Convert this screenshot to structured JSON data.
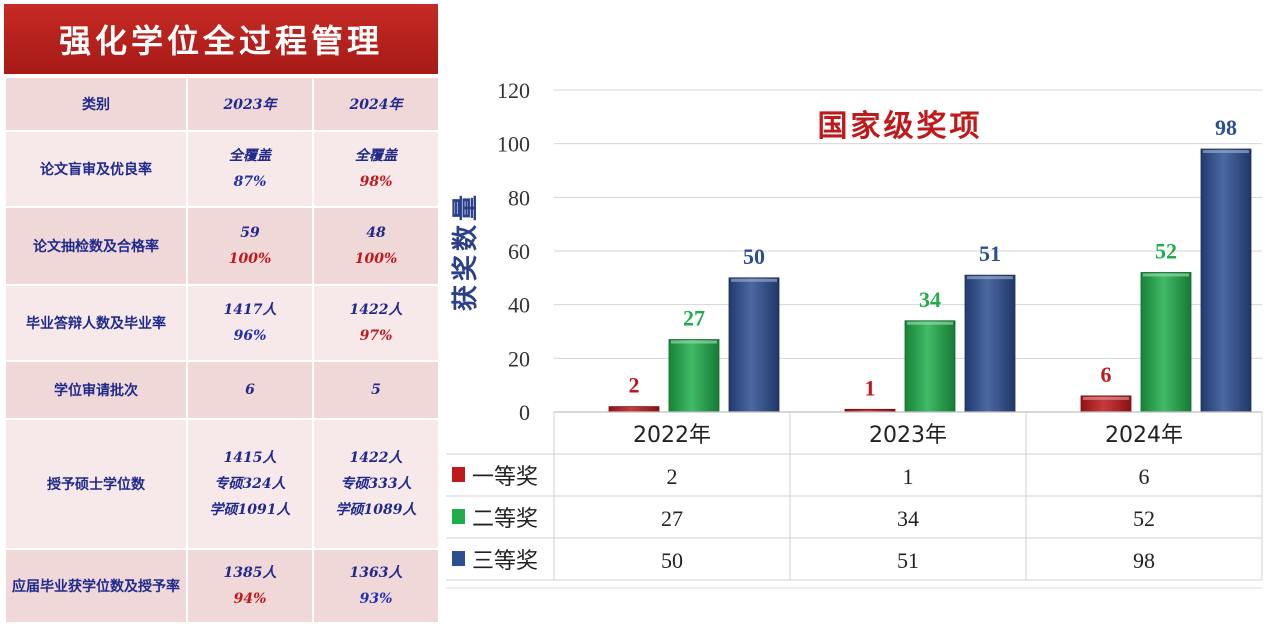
{
  "left_table": {
    "title": "强化学位全过程管理",
    "headers": [
      "类别",
      "2023年",
      "2024年"
    ],
    "rows": [
      {
        "label": "论文盲审及优良率",
        "c2023": [
          "全覆盖",
          "87%"
        ],
        "c2024": [
          "全覆盖",
          "98%"
        ],
        "color2023": [
          "",
          "blue"
        ],
        "color2024": [
          "",
          "red"
        ]
      },
      {
        "label": "论文抽检数及合格率",
        "c2023": [
          "59",
          "100%"
        ],
        "c2024": [
          "48",
          "100%"
        ],
        "color2023": [
          "",
          "red"
        ],
        "color2024": [
          "",
          "red"
        ]
      },
      {
        "label": "毕业答辩人数及毕业率",
        "c2023": [
          "1417人",
          "96%"
        ],
        "c2024": [
          "1422人",
          "97%"
        ],
        "color2023": [
          "",
          "blue"
        ],
        "color2024": [
          "",
          "red"
        ]
      },
      {
        "label": "学位审请批次",
        "c2023": [
          "6"
        ],
        "c2024": [
          "5"
        ],
        "color2023": [
          ""
        ],
        "color2024": [
          ""
        ]
      },
      {
        "label": "授予硕士学位数",
        "c2023": [
          "1415人",
          "专硕324人",
          "学硕1091人"
        ],
        "c2024": [
          "1422人",
          "专硕333人",
          "学硕1089人"
        ],
        "color2023": [
          "",
          "",
          ""
        ],
        "color2024": [
          "",
          "",
          ""
        ]
      },
      {
        "label": "应届毕业获学位数及授予率",
        "c2023": [
          "1385人",
          "94%"
        ],
        "c2024": [
          "1363人",
          "93%"
        ],
        "color2023": [
          "",
          "red"
        ],
        "color2024": [
          "",
          "blue"
        ]
      }
    ]
  },
  "chart_data": {
    "type": "bar",
    "title": "国家级奖项",
    "ylabel": "获奖数量",
    "xlabel": "",
    "ylim": [
      0,
      120
    ],
    "yticks": [
      0,
      20,
      40,
      60,
      80,
      100,
      120
    ],
    "categories": [
      "2022年",
      "2023年",
      "2024年"
    ],
    "series": [
      {
        "name": "一等奖",
        "values": [
          2,
          1,
          6
        ],
        "color": "#c0191c"
      },
      {
        "name": "二等奖",
        "values": [
          27,
          34,
          52
        ],
        "color": "#1fae4b"
      },
      {
        "name": "三等奖",
        "values": [
          50,
          51,
          98
        ],
        "color": "#2c4f93"
      }
    ],
    "legend": "data-table-below",
    "grid": true
  }
}
